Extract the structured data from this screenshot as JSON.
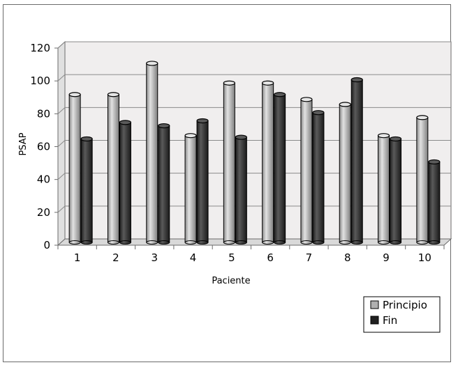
{
  "chart_data": {
    "type": "bar",
    "title": "",
    "xlabel": "Paciente",
    "ylabel": "PSAP",
    "categories": [
      "1",
      "2",
      "3",
      "4",
      "5",
      "6",
      "7",
      "8",
      "9",
      "10"
    ],
    "series": [
      {
        "name": "Principio",
        "values": [
          90,
          90,
          109,
          65,
          97,
          97,
          87,
          84,
          65,
          76
        ],
        "color": "#b0b0b0"
      },
      {
        "name": "Fin",
        "values": [
          63,
          73,
          71,
          74,
          64,
          90,
          79,
          99,
          63,
          49
        ],
        "color": "#3c3c3c"
      }
    ],
    "ylim": [
      0,
      120
    ],
    "yticks": [
      "0",
      "20",
      "40",
      "60",
      "80",
      "100",
      "120"
    ],
    "grid": true,
    "legend_position": "bottom-right"
  }
}
